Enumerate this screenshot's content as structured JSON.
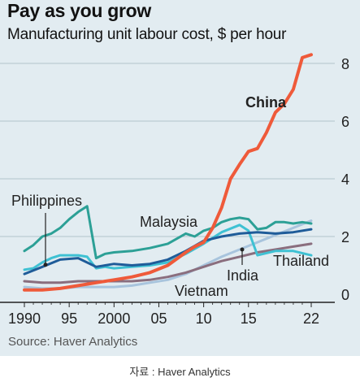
{
  "title": "Pay as you grow",
  "subtitle": "Manufacturing unit labour cost, $ per hour",
  "source": "Source: Haver Analytics",
  "caption": "자료 : Haver Analytics",
  "chart_data": {
    "type": "line",
    "title": "Pay as you grow",
    "subtitle": "Manufacturing unit labour cost, $ per hour",
    "xlabel": "",
    "ylabel": "",
    "xlim": [
      1990,
      2022
    ],
    "ylim": [
      0,
      8.4
    ],
    "yticks": [
      0,
      2,
      4,
      6,
      8
    ],
    "y_axis_side": "right",
    "xticks": [
      1990,
      1995,
      2000,
      2005,
      2010,
      2015,
      2022
    ],
    "xtick_labels": [
      "1990",
      "95",
      "2000",
      "05",
      "10",
      "15",
      "22"
    ],
    "grid": true,
    "legend": "direct labels",
    "series": [
      {
        "name": "China",
        "color": "#ef5a3a",
        "bold_label": true,
        "x": [
          1990,
          1992,
          1994,
          1996,
          1998,
          2000,
          2002,
          2004,
          2006,
          2008,
          2009,
          2010,
          2011,
          2012,
          2013,
          2014,
          2015,
          2016,
          2017,
          2018,
          2019,
          2020,
          2021,
          2022
        ],
        "y": [
          0.15,
          0.15,
          0.2,
          0.3,
          0.4,
          0.5,
          0.6,
          0.75,
          1.0,
          1.45,
          1.65,
          1.8,
          2.3,
          3.0,
          4.0,
          4.5,
          4.95,
          5.05,
          5.6,
          6.3,
          6.6,
          7.1,
          8.2,
          8.3
        ]
      },
      {
        "name": "Philippines",
        "color": "#1f5c99",
        "x": [
          1990,
          1992,
          1994,
          1996,
          1998,
          2000,
          2002,
          2004,
          2006,
          2008,
          2010,
          2012,
          2014,
          2016,
          2018,
          2020,
          2022
        ],
        "y": [
          0.7,
          0.95,
          1.2,
          1.25,
          0.95,
          1.05,
          1.0,
          1.05,
          1.2,
          1.5,
          1.85,
          2.0,
          2.1,
          2.15,
          2.1,
          2.15,
          2.25
        ]
      },
      {
        "name": "Malaysia",
        "color": "#2ca096",
        "x": [
          1990,
          1991,
          1992,
          1993,
          1994,
          1995,
          1996,
          1997,
          1998,
          1999,
          2000,
          2002,
          2004,
          2006,
          2008,
          2009,
          2010,
          2011,
          2012,
          2013,
          2014,
          2015,
          2016,
          2017,
          2018,
          2019,
          2020,
          2021,
          2022
        ],
        "y": [
          1.5,
          1.7,
          2.0,
          2.1,
          2.3,
          2.6,
          2.85,
          3.05,
          1.25,
          1.4,
          1.45,
          1.5,
          1.6,
          1.75,
          2.1,
          2.0,
          2.2,
          2.3,
          2.5,
          2.6,
          2.65,
          2.6,
          2.25,
          2.3,
          2.5,
          2.5,
          2.45,
          2.5,
          2.45
        ]
      },
      {
        "name": "Thailand",
        "color": "#3ec1d3",
        "x": [
          1990,
          1991,
          1992,
          1993,
          1994,
          1995,
          1996,
          1997,
          1998,
          1999,
          2000,
          2002,
          2004,
          2006,
          2008,
          2010,
          2012,
          2014,
          2015,
          2016,
          2018,
          2020,
          2022
        ],
        "y": [
          0.85,
          0.9,
          1.1,
          1.25,
          1.35,
          1.35,
          1.35,
          1.3,
          0.9,
          0.95,
          0.9,
          0.95,
          1.0,
          1.1,
          1.4,
          1.75,
          2.15,
          2.4,
          2.2,
          1.35,
          1.5,
          1.5,
          1.35
        ]
      },
      {
        "name": "India",
        "color": "#8a6e7e",
        "x": [
          1990,
          1992,
          1994,
          1996,
          1998,
          2000,
          2002,
          2004,
          2006,
          2008,
          2010,
          2012,
          2014,
          2016,
          2018,
          2020,
          2022
        ],
        "y": [
          0.45,
          0.4,
          0.4,
          0.45,
          0.45,
          0.45,
          0.45,
          0.5,
          0.6,
          0.75,
          0.95,
          1.15,
          1.3,
          1.45,
          1.55,
          1.65,
          1.75
        ]
      },
      {
        "name": "Vietnam",
        "color": "#a8c4dd",
        "x": [
          1990,
          1992,
          1994,
          1996,
          1998,
          2000,
          2002,
          2004,
          2006,
          2008,
          2010,
          2012,
          2014,
          2016,
          2018,
          2020,
          2022
        ],
        "y": [
          0.25,
          0.2,
          0.2,
          0.25,
          0.25,
          0.25,
          0.3,
          0.4,
          0.5,
          0.7,
          1.0,
          1.3,
          1.55,
          1.8,
          2.05,
          2.3,
          2.55
        ]
      }
    ]
  }
}
